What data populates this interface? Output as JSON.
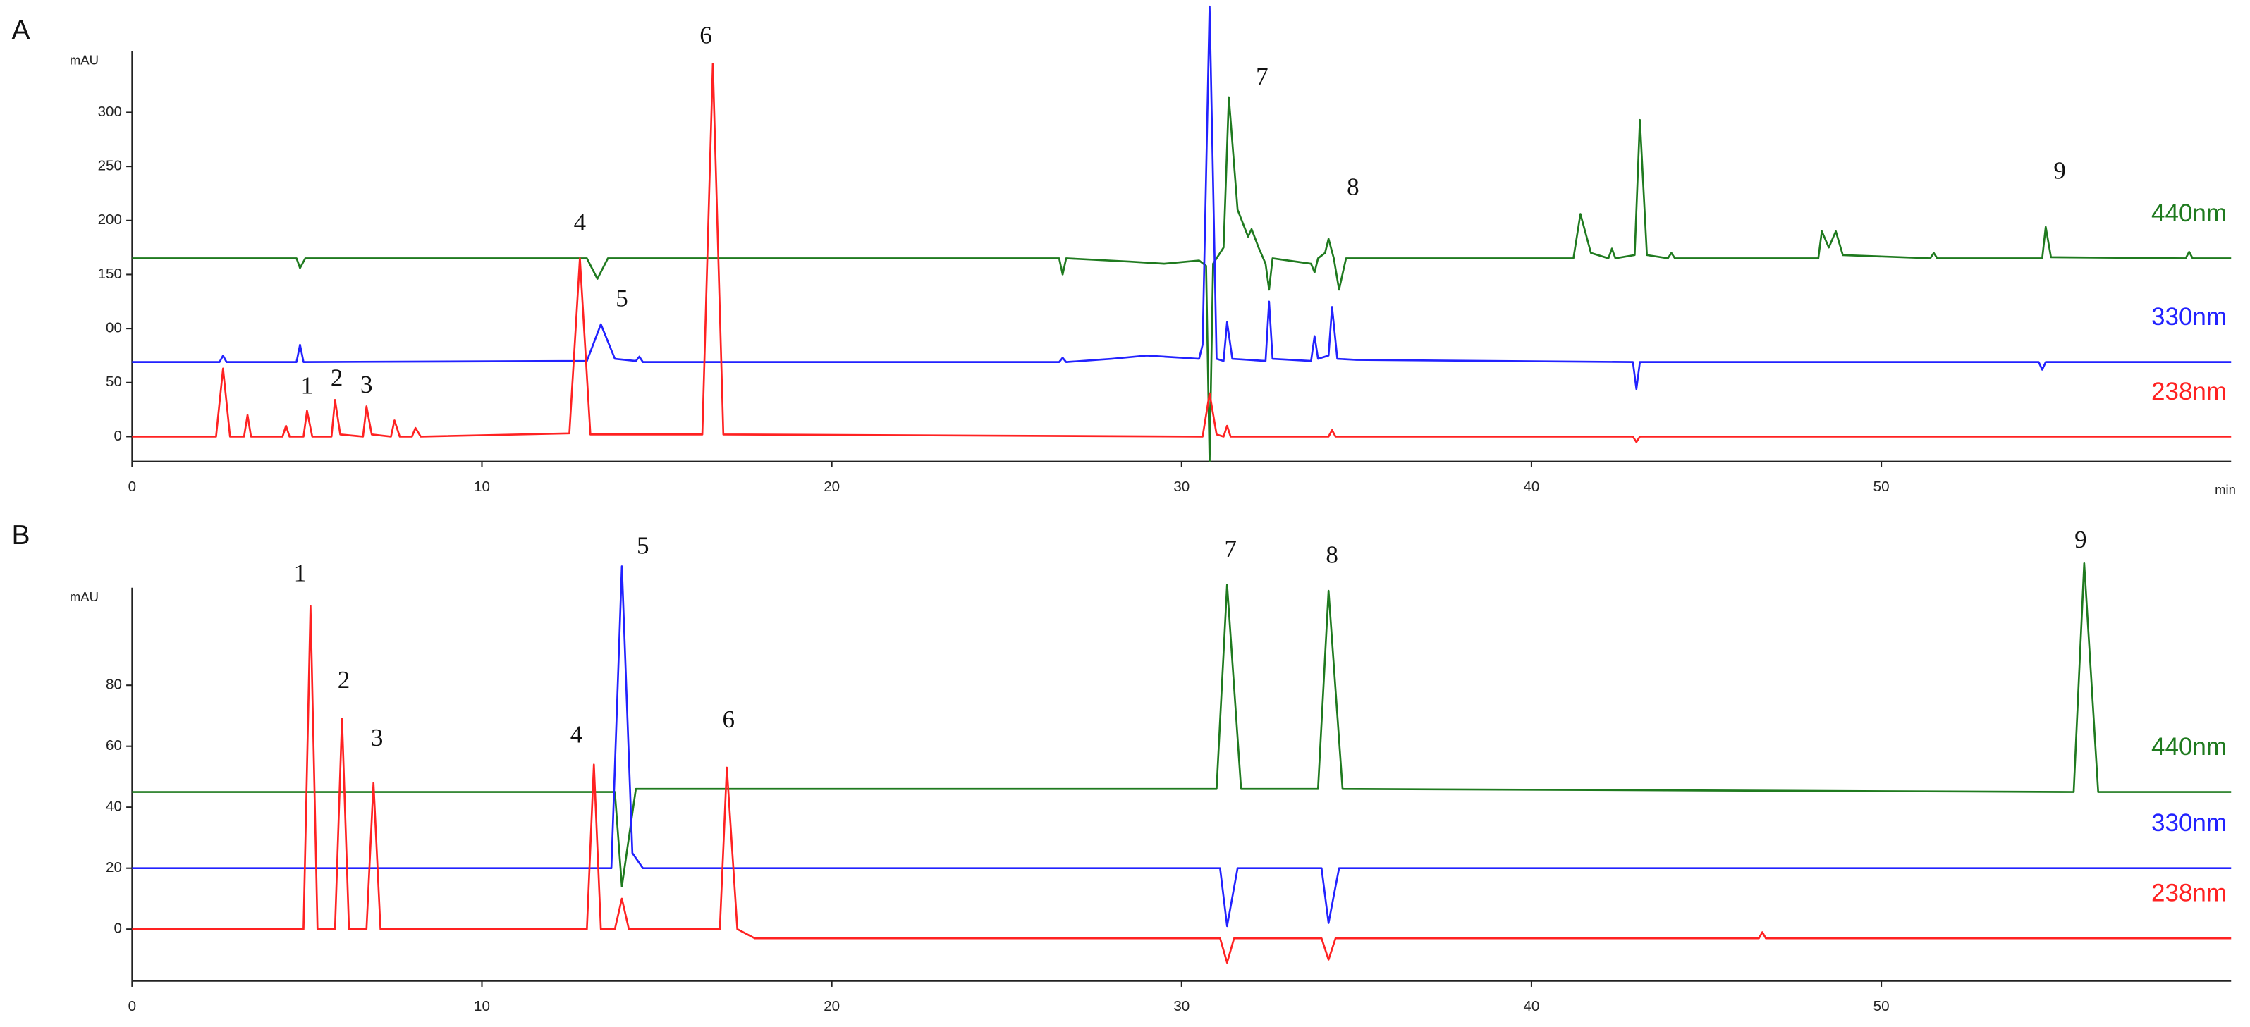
{
  "chart_data": [
    {
      "type": "line",
      "label": "A",
      "y_label": "mAU",
      "x_label": "min",
      "xlim": [
        0,
        60
      ],
      "xticks": [
        0,
        10,
        20,
        30,
        40,
        50
      ],
      "ylim": [
        -23,
        357
      ],
      "yticks": [
        0,
        50,
        {
          "value": 100,
          "label": "00"
        },
        150,
        200,
        250,
        300
      ],
      "series": [
        {
          "name": "440nm",
          "color": "#1f7a1f",
          "x": [
            0,
            4.7,
            4.8,
            4.95,
            13.0,
            13.3,
            13.6,
            26.5,
            26.6,
            26.7,
            28.5,
            29.5,
            30.5,
            30.7,
            30.8,
            30.9,
            31.2,
            31.35,
            31.6,
            31.9,
            32.0,
            32.2,
            32.4,
            32.5,
            32.6,
            33.7,
            33.8,
            33.9,
            34.1,
            34.2,
            34.35,
            34.5,
            34.7,
            41.2,
            41.4,
            41.7,
            42.2,
            42.3,
            42.4,
            42.95,
            43.1,
            43.3,
            43.9,
            44.0,
            44.1,
            48.2,
            48.3,
            48.5,
            48.7,
            48.9,
            51.4,
            51.5,
            51.6,
            54.6,
            54.7,
            54.85,
            58.7,
            58.8,
            58.9,
            60
          ],
          "values": [
            165,
            165,
            156,
            165,
            165,
            146,
            165,
            165,
            150,
            165,
            162,
            160,
            163,
            158,
            -23,
            160,
            175,
            314,
            210,
            185,
            192,
            175,
            160,
            136,
            165,
            160,
            152,
            165,
            170,
            183,
            165,
            136,
            165,
            165,
            206,
            170,
            165,
            174,
            165,
            168,
            293,
            168,
            165,
            170,
            165,
            165,
            190,
            175,
            190,
            168,
            165,
            170,
            165,
            165,
            194,
            166,
            165,
            171,
            165,
            165
          ]
        },
        {
          "name": "330nm",
          "color": "#2222ff",
          "x": [
            0,
            2.5,
            2.6,
            2.7,
            4.7,
            4.8,
            4.9,
            13.0,
            13.4,
            13.8,
            14.4,
            14.5,
            14.6,
            26.5,
            26.6,
            26.7,
            28.0,
            29.0,
            29.5,
            30.5,
            30.6,
            30.8,
            31.0,
            31.2,
            31.3,
            31.45,
            32.4,
            32.5,
            32.6,
            33.7,
            33.8,
            33.9,
            34.2,
            34.3,
            34.45,
            35.0,
            42.9,
            43.0,
            43.1,
            54.5,
            54.6,
            54.7,
            60
          ],
          "values": [
            69,
            69,
            75,
            69,
            69,
            85,
            69,
            70,
            104,
            72,
            70,
            74,
            69,
            69,
            73,
            69,
            72,
            75,
            74,
            72,
            85,
            398,
            72,
            70,
            106,
            72,
            70,
            125,
            72,
            70,
            93,
            72,
            75,
            120,
            72,
            71,
            69,
            44,
            69,
            69,
            62,
            69,
            69
          ]
        },
        {
          "name": "238nm",
          "color": "#ff2222",
          "x": [
            0,
            2.4,
            2.6,
            2.8,
            3.2,
            3.3,
            3.4,
            4.3,
            4.4,
            4.5,
            4.9,
            5.0,
            5.15,
            5.7,
            5.8,
            5.95,
            6.6,
            6.7,
            6.85,
            7.4,
            7.5,
            7.65,
            8.0,
            8.1,
            8.25,
            12.5,
            12.8,
            13.1,
            16.3,
            16.6,
            16.9,
            30.6,
            30.8,
            31.0,
            31.2,
            31.3,
            31.4,
            34.2,
            34.3,
            34.4,
            42.9,
            43.0,
            43.1,
            60
          ],
          "values": [
            0,
            0,
            63,
            0,
            0,
            20,
            0,
            0,
            10,
            0,
            0,
            24,
            0,
            0,
            34,
            2,
            0,
            28,
            2,
            0,
            15,
            0,
            0,
            8,
            0,
            3,
            165,
            2,
            2,
            345,
            2,
            0,
            40,
            2,
            0,
            10,
            0,
            0,
            6,
            0,
            0,
            -5,
            0,
            0
          ]
        }
      ],
      "annotations": [
        {
          "text": "1",
          "x": 5.0,
          "y": 45
        },
        {
          "text": "2",
          "x": 5.85,
          "y": 52
        },
        {
          "text": "3",
          "x": 6.7,
          "y": 46
        },
        {
          "text": "4",
          "x": 12.8,
          "y": 196
        },
        {
          "text": "5",
          "x": 14.0,
          "y": 126
        },
        {
          "text": "6",
          "x": 16.4,
          "y": 369
        },
        {
          "text": "7",
          "x": 32.3,
          "y": 331
        },
        {
          "text": "8",
          "x": 34.9,
          "y": 229
        },
        {
          "text": "9",
          "x": 55.1,
          "y": 244
        }
      ]
    },
    {
      "type": "line",
      "label": "B",
      "y_label": "mAU",
      "xlim": [
        0,
        60
      ],
      "xticks": [
        0,
        10,
        20,
        30,
        40,
        50
      ],
      "ylim": [
        -17,
        112
      ],
      "yticks": [
        0,
        20,
        40,
        60,
        80
      ],
      "series": [
        {
          "name": "440nm",
          "color": "#1f7a1f",
          "x": [
            0,
            13.8,
            14.0,
            14.4,
            31.0,
            31.3,
            31.7,
            33.9,
            34.2,
            34.6,
            55.5,
            55.8,
            56.2,
            60
          ],
          "values": [
            45,
            45,
            14,
            46,
            46,
            113,
            46,
            46,
            111,
            46,
            45,
            120,
            45,
            45
          ]
        },
        {
          "name": "330nm",
          "color": "#2222ff",
          "x": [
            0,
            13.7,
            14.0,
            14.3,
            14.6,
            31.1,
            31.3,
            31.6,
            34.0,
            34.2,
            34.5,
            60
          ],
          "values": [
            20,
            20,
            119,
            25,
            20,
            20,
            1,
            20,
            20,
            2,
            20,
            20
          ]
        },
        {
          "name": "238nm",
          "color": "#ff2222",
          "x": [
            0,
            4.9,
            5.1,
            5.3,
            5.8,
            6.0,
            6.2,
            6.7,
            6.9,
            7.1,
            13.0,
            13.2,
            13.4,
            13.8,
            14.0,
            14.2,
            16.8,
            17.0,
            17.3,
            17.8,
            31.1,
            31.3,
            31.5,
            34.0,
            34.2,
            34.4,
            46.5,
            46.6,
            46.7,
            60
          ],
          "values": [
            0,
            0,
            106,
            0,
            0,
            69,
            0,
            0,
            48,
            0,
            0,
            54,
            0,
            0,
            10,
            0,
            0,
            53,
            0,
            -3,
            -3,
            -11,
            -3,
            -3,
            -10,
            -3,
            -3,
            -1,
            -3,
            -3
          ]
        }
      ],
      "annotations": [
        {
          "text": "1",
          "x": 4.8,
          "y": 116
        },
        {
          "text": "2",
          "x": 6.05,
          "y": 81
        },
        {
          "text": "3",
          "x": 7.0,
          "y": 62
        },
        {
          "text": "4",
          "x": 12.7,
          "y": 63
        },
        {
          "text": "5",
          "x": 14.6,
          "y": 125
        },
        {
          "text": "6",
          "x": 17.05,
          "y": 68
        },
        {
          "text": "7",
          "x": 31.4,
          "y": 124
        },
        {
          "text": "8",
          "x": 34.3,
          "y": 122
        },
        {
          "text": "9",
          "x": 55.7,
          "y": 127
        }
      ]
    }
  ]
}
